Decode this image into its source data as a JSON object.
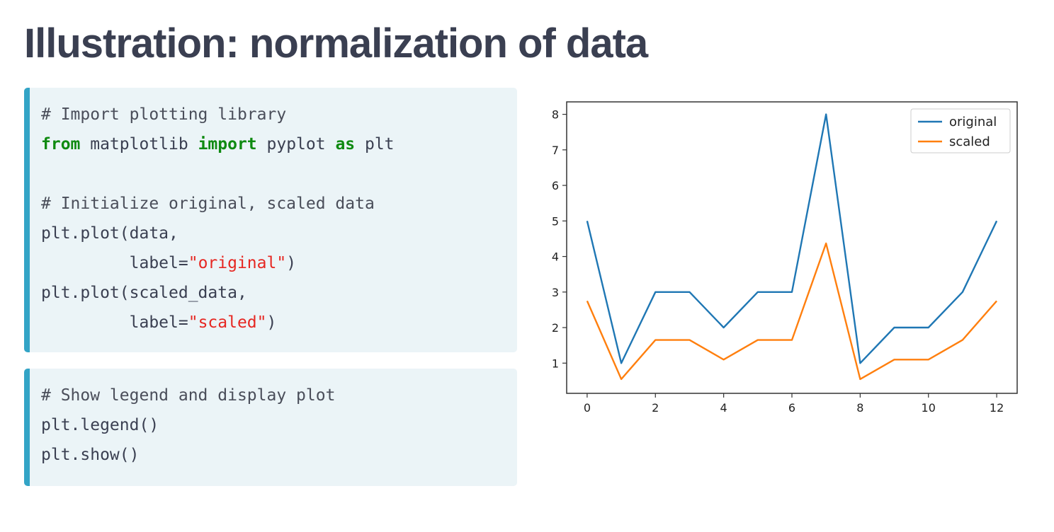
{
  "slide": {
    "title": "Illustration: normalization of data"
  },
  "code_block_1": {
    "lines": [
      [
        {
          "t": "# Import plotting library",
          "c": "cmt"
        }
      ],
      [
        {
          "t": "from",
          "c": "kw"
        },
        {
          "t": " matplotlib ",
          "c": ""
        },
        {
          "t": "import",
          "c": "kw"
        },
        {
          "t": " pyplot ",
          "c": ""
        },
        {
          "t": "as",
          "c": "kw"
        },
        {
          "t": " plt",
          "c": ""
        }
      ],
      [],
      [
        {
          "t": "# Initialize original, scaled data",
          "c": "cmt"
        }
      ],
      [
        {
          "t": "plt.plot(data,",
          "c": ""
        }
      ],
      [
        {
          "t": "         label=",
          "c": ""
        },
        {
          "t": "\"original\"",
          "c": "str"
        },
        {
          "t": ")",
          "c": ""
        }
      ],
      [
        {
          "t": "plt.plot(scaled_data,",
          "c": ""
        }
      ],
      [
        {
          "t": "         label=",
          "c": ""
        },
        {
          "t": "\"scaled\"",
          "c": "str"
        },
        {
          "t": ")",
          "c": ""
        }
      ]
    ]
  },
  "code_block_2": {
    "lines": [
      [
        {
          "t": "# Show legend and display plot",
          "c": "cmt"
        }
      ],
      [
        {
          "t": "plt.legend()",
          "c": ""
        }
      ],
      [
        {
          "t": "plt.show()",
          "c": ""
        }
      ]
    ]
  },
  "colors": {
    "title": "#3a3f51",
    "code_accent": "#33a4c6",
    "code_bg": "#ebf4f7",
    "keyword": "#0f8a11",
    "string": "#e62722",
    "series_original": "#1f77b4",
    "series_scaled": "#ff7f0e"
  },
  "chart_data": {
    "type": "line",
    "title": "",
    "xlabel": "",
    "ylabel": "",
    "x": [
      0,
      1,
      2,
      3,
      4,
      5,
      6,
      7,
      8,
      9,
      10,
      11,
      12
    ],
    "xticks": [
      "0",
      "2",
      "4",
      "6",
      "8",
      "10",
      "12"
    ],
    "xtick_values": [
      0,
      2,
      4,
      6,
      8,
      10,
      12
    ],
    "yticks": [
      "1",
      "2",
      "3",
      "4",
      "5",
      "6",
      "7",
      "8"
    ],
    "ytick_values": [
      1,
      2,
      3,
      4,
      5,
      6,
      7,
      8
    ],
    "xlim": [
      -0.6,
      12.6
    ],
    "ylim": [
      0.15,
      8.35
    ],
    "grid": false,
    "legend_position": "top-right",
    "series": [
      {
        "name": "original",
        "color": "#1f77b4",
        "values": [
          5,
          1,
          3,
          3,
          2,
          3,
          3,
          8,
          1,
          2,
          2,
          3,
          5
        ]
      },
      {
        "name": "scaled",
        "color": "#ff7f0e",
        "values": [
          2.75,
          0.55,
          1.65,
          1.65,
          1.1,
          1.65,
          1.65,
          4.37,
          0.55,
          1.1,
          1.1,
          1.65,
          2.75
        ]
      }
    ]
  }
}
